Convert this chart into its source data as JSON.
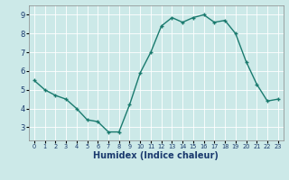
{
  "x": [
    0,
    1,
    2,
    3,
    4,
    5,
    6,
    7,
    8,
    9,
    10,
    11,
    12,
    13,
    14,
    15,
    16,
    17,
    18,
    19,
    20,
    21,
    22,
    23
  ],
  "y": [
    5.5,
    5.0,
    4.7,
    4.5,
    4.0,
    3.4,
    3.3,
    2.75,
    2.75,
    4.2,
    5.9,
    7.0,
    8.4,
    8.85,
    8.6,
    8.85,
    9.0,
    8.6,
    8.7,
    8.0,
    6.5,
    5.3,
    4.4,
    4.5
  ],
  "line_color": "#1a7a6e",
  "marker": "+",
  "bg_color": "#cce9e8",
  "grid_color": "#ffffff",
  "xlabel": "Humidex (Indice chaleur)",
  "xlabel_fontsize": 7,
  "xlabel_color": "#1a3a6e",
  "tick_label_color": "#1a3a6e",
  "xlim": [
    -0.5,
    23.5
  ],
  "ylim": [
    2.3,
    9.5
  ],
  "yticks": [
    3,
    4,
    5,
    6,
    7,
    8,
    9
  ],
  "linewidth": 1.0,
  "markersize": 3.5,
  "markeredgewidth": 1.0
}
